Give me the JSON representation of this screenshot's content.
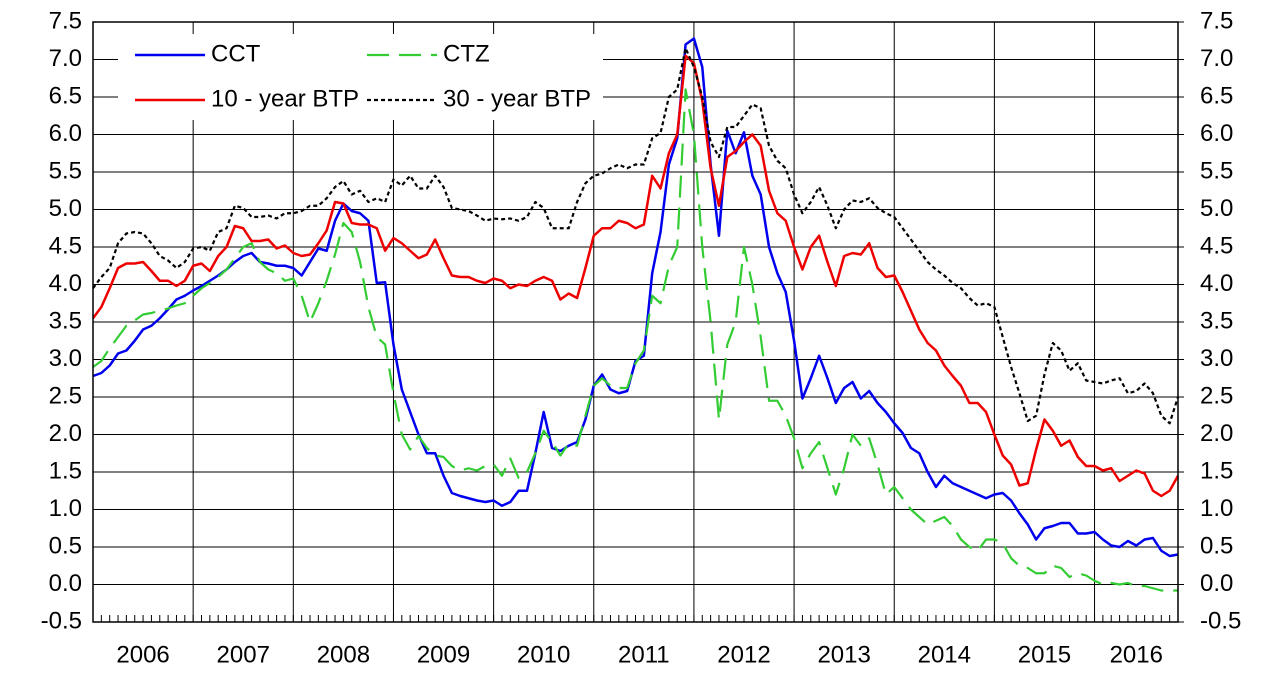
{
  "chart_data": {
    "type": "line",
    "categories": [
      "2006",
      null,
      null,
      null,
      null,
      null,
      null,
      null,
      null,
      null,
      null,
      null,
      "2007",
      null,
      null,
      null,
      null,
      null,
      null,
      null,
      null,
      null,
      null,
      null,
      "2008",
      null,
      null,
      null,
      null,
      null,
      null,
      null,
      null,
      null,
      null,
      null,
      "2009",
      null,
      null,
      null,
      null,
      null,
      null,
      null,
      null,
      null,
      null,
      null,
      "2010",
      null,
      null,
      null,
      null,
      null,
      null,
      null,
      null,
      null,
      null,
      null,
      "2011",
      null,
      null,
      null,
      null,
      null,
      null,
      null,
      null,
      null,
      null,
      null,
      "2012",
      null,
      null,
      null,
      null,
      null,
      null,
      null,
      null,
      null,
      null,
      null,
      "2013",
      null,
      null,
      null,
      null,
      null,
      null,
      null,
      null,
      null,
      null,
      null,
      "2014",
      null,
      null,
      null,
      null,
      null,
      null,
      null,
      null,
      null,
      null,
      null,
      "2015",
      null,
      null,
      null,
      null,
      null,
      null,
      null,
      null,
      null,
      null,
      null,
      "2016",
      null,
      null,
      null,
      null,
      null,
      null,
      null,
      null,
      null,
      null
    ],
    "series": [
      {
        "name": "CCT",
        "color": "#0000ee",
        "dash": "solid",
        "values": [
          2.78,
          2.82,
          2.92,
          3.08,
          3.12,
          3.25,
          3.4,
          3.45,
          3.55,
          3.67,
          3.8,
          3.85,
          3.92,
          3.98,
          4.05,
          4.12,
          4.2,
          4.3,
          4.38,
          4.42,
          4.3,
          4.28,
          4.25,
          4.25,
          4.22,
          4.12,
          4.3,
          4.48,
          4.45,
          4.85,
          5.08,
          4.98,
          4.95,
          4.85,
          4.02,
          4.03,
          3.2,
          2.6,
          2.3,
          2.0,
          1.75,
          1.75,
          1.45,
          1.22,
          1.18,
          1.15,
          1.12,
          1.1,
          1.12,
          1.05,
          1.1,
          1.25,
          1.25,
          1.75,
          2.3,
          1.82,
          1.78,
          1.85,
          1.9,
          2.2,
          2.65,
          2.8,
          2.6,
          2.55,
          2.58,
          2.98,
          3.05,
          4.15,
          4.7,
          5.6,
          5.95,
          7.2,
          7.28,
          6.9,
          5.6,
          4.65,
          6.05,
          5.75,
          6.03,
          5.45,
          5.2,
          4.5,
          4.15,
          3.9,
          3.25,
          2.48,
          2.75,
          3.05,
          2.75,
          2.42,
          2.62,
          2.7,
          2.48,
          2.58,
          2.42,
          2.3,
          2.15,
          2.02,
          1.82,
          1.75,
          1.5,
          1.3,
          1.45,
          1.35,
          1.3,
          1.25,
          1.2,
          1.15,
          1.2,
          1.22,
          1.12,
          0.95,
          0.8,
          0.6,
          0.75,
          0.78,
          0.82,
          0.82,
          0.68,
          0.68,
          0.7,
          0.6,
          0.52,
          0.5,
          0.58,
          0.52,
          0.6,
          0.62,
          0.45,
          0.38,
          0.4
        ]
      },
      {
        "name": "CTZ",
        "color": "#33cc33",
        "dash": "dashed",
        "values": [
          2.9,
          2.98,
          3.15,
          3.3,
          3.45,
          3.52,
          3.6,
          3.62,
          3.65,
          3.68,
          3.72,
          3.75,
          3.85,
          3.95,
          4.02,
          4.1,
          4.2,
          4.35,
          4.5,
          4.55,
          4.3,
          4.2,
          4.15,
          4.05,
          4.08,
          3.85,
          3.5,
          3.75,
          4.05,
          4.4,
          4.82,
          4.7,
          4.3,
          3.7,
          3.3,
          3.2,
          2.55,
          2.0,
          1.8,
          1.98,
          1.82,
          1.72,
          1.7,
          1.58,
          1.52,
          1.55,
          1.52,
          1.58,
          1.6,
          1.45,
          1.68,
          1.42,
          1.5,
          1.75,
          2.05,
          1.9,
          1.72,
          1.88,
          1.85,
          2.25,
          2.65,
          2.75,
          2.65,
          2.62,
          2.62,
          2.95,
          3.12,
          3.85,
          3.75,
          4.25,
          4.5,
          6.6,
          6.0,
          4.5,
          3.5,
          2.2,
          3.2,
          3.5,
          4.5,
          4.0,
          3.3,
          2.45,
          2.45,
          2.25,
          1.95,
          1.55,
          1.75,
          1.9,
          1.55,
          1.2,
          1.55,
          2.0,
          1.85,
          1.95,
          1.6,
          1.2,
          1.3,
          1.15,
          1.0,
          0.9,
          0.8,
          0.85,
          0.9,
          0.78,
          0.6,
          0.5,
          0.45,
          0.6,
          0.6,
          0.55,
          0.35,
          0.25,
          0.22,
          0.15,
          0.15,
          0.25,
          0.22,
          0.1,
          0.15,
          0.12,
          0.05,
          0.0,
          0.02,
          0.0,
          0.02,
          -0.02,
          -0.02,
          -0.05,
          -0.08,
          -0.08,
          -0.08
        ]
      },
      {
        "name": "10 - year BTP",
        "color": "#ee0000",
        "dash": "solid",
        "values": [
          3.55,
          3.7,
          3.95,
          4.22,
          4.28,
          4.28,
          4.3,
          4.18,
          4.05,
          4.05,
          3.98,
          4.05,
          4.25,
          4.28,
          4.18,
          4.38,
          4.5,
          4.78,
          4.75,
          4.58,
          4.58,
          4.6,
          4.48,
          4.52,
          4.42,
          4.38,
          4.4,
          4.55,
          4.72,
          5.1,
          5.08,
          4.82,
          4.8,
          4.8,
          4.75,
          4.45,
          4.62,
          4.55,
          4.45,
          4.35,
          4.4,
          4.6,
          4.35,
          4.12,
          4.1,
          4.1,
          4.05,
          4.02,
          4.08,
          4.05,
          3.95,
          4.0,
          3.98,
          4.05,
          4.1,
          4.05,
          3.8,
          3.88,
          3.82,
          4.22,
          4.65,
          4.75,
          4.75,
          4.85,
          4.82,
          4.75,
          4.8,
          5.45,
          5.28,
          5.75,
          6.0,
          7.05,
          6.95,
          6.45,
          5.55,
          5.05,
          5.7,
          5.78,
          5.9,
          6.0,
          5.85,
          5.25,
          4.95,
          4.85,
          4.5,
          4.2,
          4.5,
          4.65,
          4.3,
          3.98,
          4.38,
          4.42,
          4.4,
          4.55,
          4.22,
          4.1,
          4.12,
          3.9,
          3.65,
          3.4,
          3.22,
          3.12,
          2.92,
          2.78,
          2.65,
          2.42,
          2.42,
          2.3,
          2.0,
          1.72,
          1.6,
          1.32,
          1.35,
          1.8,
          2.2,
          2.05,
          1.85,
          1.92,
          1.7,
          1.58,
          1.58,
          1.52,
          1.55,
          1.38,
          1.45,
          1.52,
          1.48,
          1.25,
          1.18,
          1.25,
          1.45
        ]
      },
      {
        "name": "30 - year BTP",
        "color": "#000000",
        "dash": "dotted",
        "values": [
          3.95,
          4.1,
          4.22,
          4.55,
          4.68,
          4.7,
          4.68,
          4.55,
          4.38,
          4.32,
          4.22,
          4.3,
          4.48,
          4.5,
          4.45,
          4.7,
          4.75,
          5.05,
          5.02,
          4.9,
          4.9,
          4.92,
          4.88,
          4.95,
          4.95,
          4.98,
          5.05,
          5.05,
          5.15,
          5.3,
          5.38,
          5.2,
          5.25,
          5.1,
          5.15,
          5.1,
          5.4,
          5.32,
          5.45,
          5.28,
          5.28,
          5.45,
          5.3,
          5.02,
          5.0,
          4.98,
          4.92,
          4.85,
          4.88,
          4.87,
          4.88,
          4.85,
          4.9,
          5.1,
          5.02,
          4.75,
          4.75,
          4.75,
          5.1,
          5.35,
          5.45,
          5.48,
          5.55,
          5.6,
          5.55,
          5.6,
          5.6,
          5.95,
          6.02,
          6.5,
          6.6,
          7.15,
          6.9,
          6.5,
          5.9,
          5.7,
          6.1,
          6.1,
          6.25,
          6.4,
          6.35,
          5.85,
          5.65,
          5.55,
          5.2,
          4.95,
          5.1,
          5.3,
          5.05,
          4.75,
          5.0,
          5.12,
          5.1,
          5.15,
          5.02,
          4.95,
          4.9,
          4.75,
          4.6,
          4.45,
          4.3,
          4.2,
          4.12,
          4.02,
          3.95,
          3.82,
          3.72,
          3.75,
          3.7,
          3.3,
          2.9,
          2.55,
          2.18,
          2.25,
          2.8,
          3.22,
          3.12,
          2.85,
          2.95,
          2.72,
          2.7,
          2.68,
          2.72,
          2.75,
          2.55,
          2.58,
          2.68,
          2.55,
          2.25,
          2.15,
          2.5
        ]
      }
    ],
    "ylim": [
      -0.5,
      7.5
    ],
    "yticks": [
      -0.5,
      {
        "value": 0,
        "label": "0.0"
      },
      0.5,
      {
        "value": 1,
        "label": "1.0"
      },
      1.5,
      {
        "value": 2,
        "label": "2.0"
      },
      2.5,
      {
        "value": 3,
        "label": "3.0"
      },
      3.5,
      {
        "value": 4,
        "label": "4.0"
      },
      4.5,
      {
        "value": 5,
        "label": "5.0"
      },
      5.5,
      {
        "value": 6,
        "label": "6.0"
      },
      6.5,
      {
        "value": 7,
        "label": "7.0"
      },
      7.5
    ],
    "y2lim": [
      -0.5,
      7.5
    ],
    "y2ticks": [
      -0.5,
      {
        "value": 0,
        "label": "0.0"
      },
      0.5,
      {
        "value": 1,
        "label": "1.0"
      },
      1.5,
      {
        "value": 2,
        "label": "2.0"
      },
      2.5,
      {
        "value": 3,
        "label": "3.0"
      },
      3.5,
      {
        "value": 4,
        "label": "4.0"
      },
      4.5,
      {
        "value": 5,
        "label": "5.0"
      },
      5.5,
      {
        "value": 6,
        "label": "6.0"
      },
      6.5,
      {
        "value": 7,
        "label": "7.0"
      },
      7.5
    ],
    "grid": true,
    "legend": "upper left"
  }
}
